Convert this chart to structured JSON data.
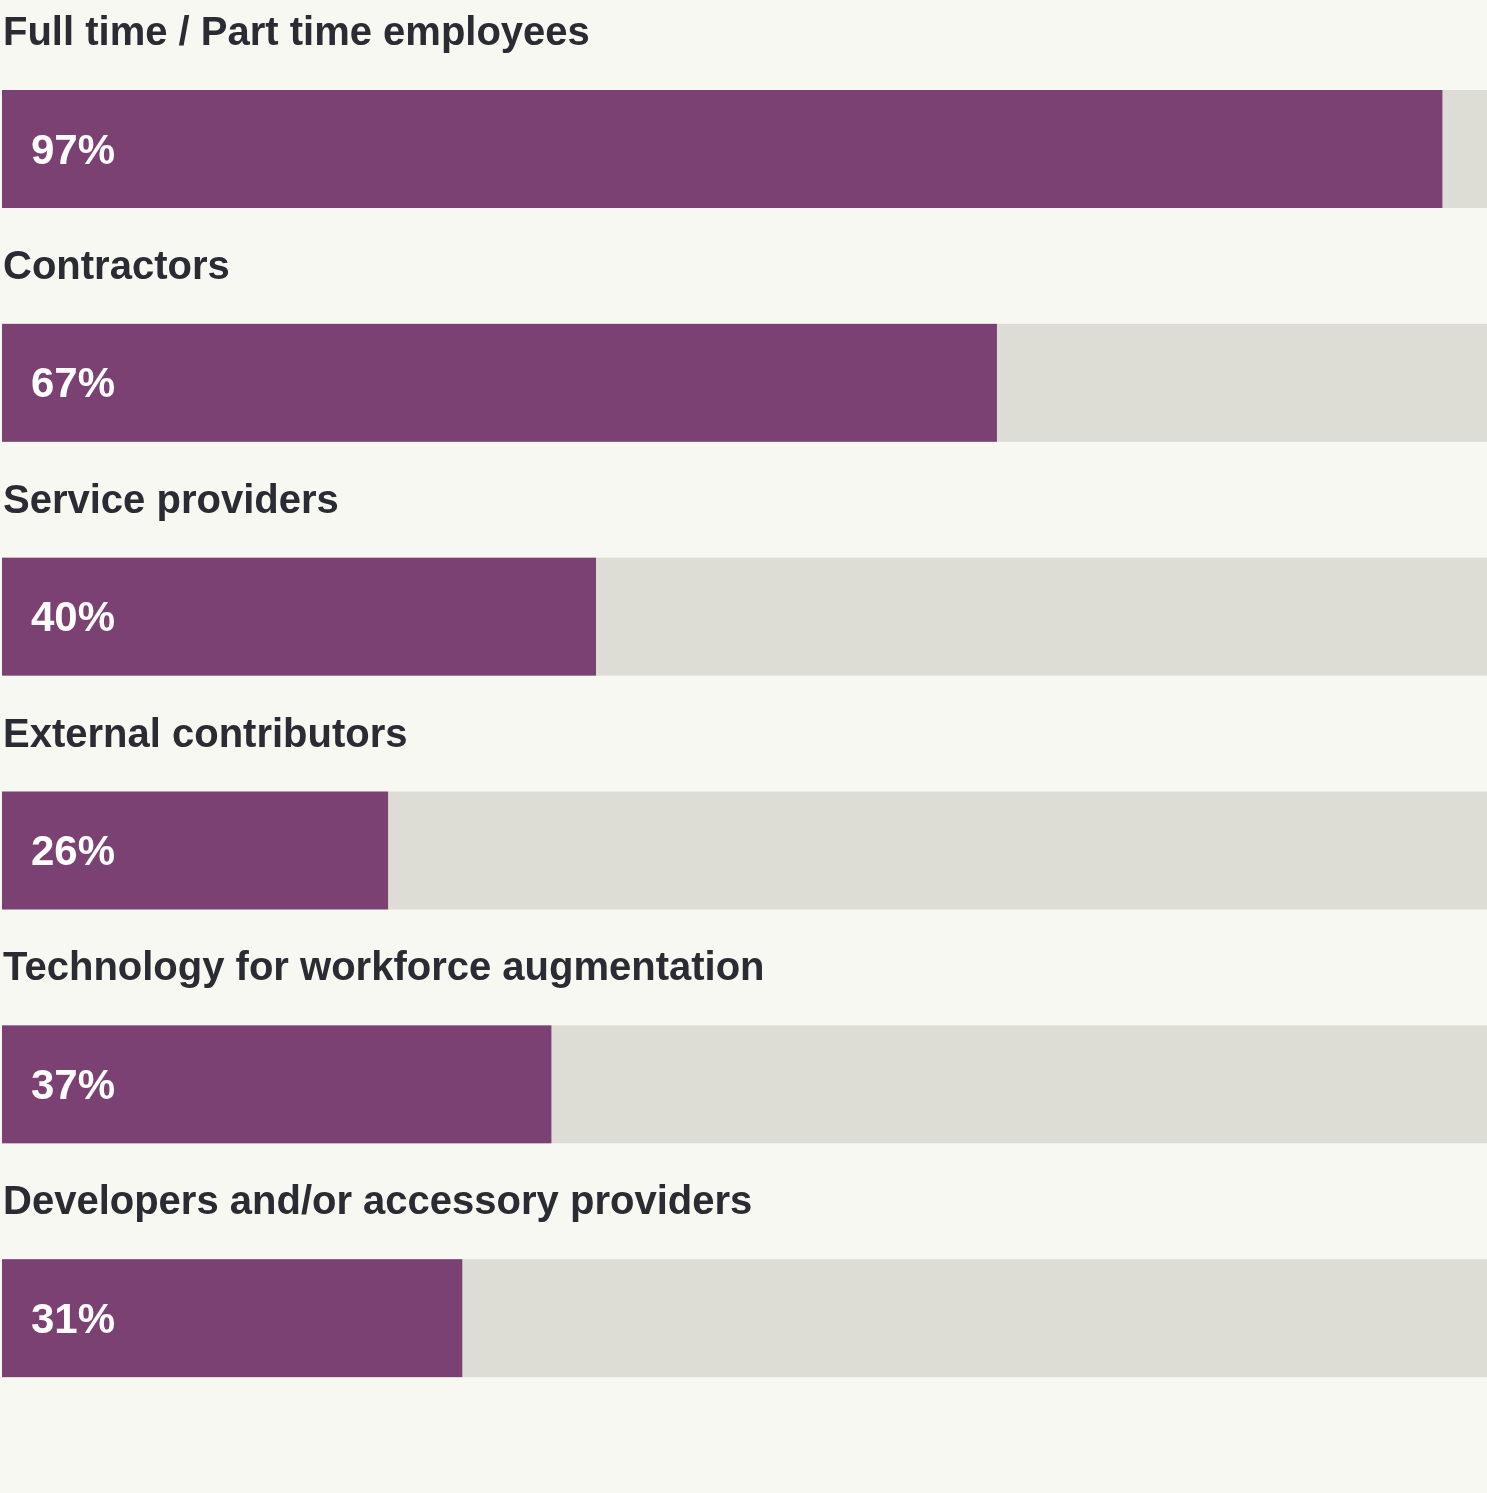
{
  "chart_data": {
    "type": "bar",
    "orientation": "horizontal",
    "categories": [
      "Full time / Part time employees",
      "Contractors",
      "Service providers",
      "External contributors",
      "Technology for workforce augmentation",
      "Developers and/or accessory providers"
    ],
    "values": [
      97,
      67,
      40,
      26,
      37,
      31
    ],
    "value_labels": [
      "97%",
      "67%",
      "40%",
      "26%",
      "37%",
      "31%"
    ],
    "color": "#7b4172",
    "xlim": [
      0,
      100
    ]
  }
}
